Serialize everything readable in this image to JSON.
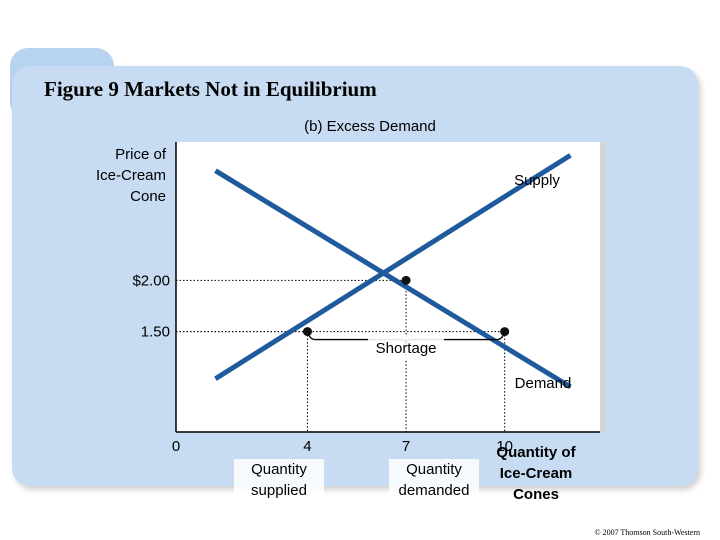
{
  "figure": {
    "title": "Figure 9 Markets Not in Equilibrium",
    "panel_label": "(b) Excess Demand",
    "copyright": "© 2007 Thomson South-Western"
  },
  "chart_data": {
    "type": "line",
    "title": "(b) Excess Demand",
    "ylabel_lines": [
      "Price of",
      "Ice-Cream",
      "Cone"
    ],
    "xlabel_lines": [
      "Quantity of",
      "Ice-Cream",
      "Cones"
    ],
    "y_tick_labels": [
      "$2.00",
      "1.50"
    ],
    "y_ticks": [
      2.0,
      1.5
    ],
    "x_ticks": [
      0,
      4,
      7,
      10
    ],
    "x_tick_labels": [
      "0",
      "4",
      "7",
      "10"
    ],
    "xlim": [
      0,
      12.9
    ],
    "ylim": [
      0.52,
      3.35
    ],
    "grid": false,
    "series": [
      {
        "name": "Supply",
        "x": [
          1.2,
          12.0
        ],
        "y": [
          1.04,
          3.22
        ],
        "color": "#1f5b9c"
      },
      {
        "name": "Demand",
        "x": [
          1.2,
          12.0
        ],
        "y": [
          3.07,
          0.96
        ],
        "color": "#1f5b9c"
      }
    ],
    "points": [
      {
        "x": 7,
        "y": 2.0
      },
      {
        "x": 4,
        "y": 1.5
      },
      {
        "x": 10,
        "y": 1.5
      }
    ],
    "annotations": {
      "shortage": "Shortage",
      "quantity_supplied": [
        "Quantity",
        "supplied"
      ],
      "quantity_demanded": [
        "Quantity",
        "demanded"
      ]
    }
  }
}
